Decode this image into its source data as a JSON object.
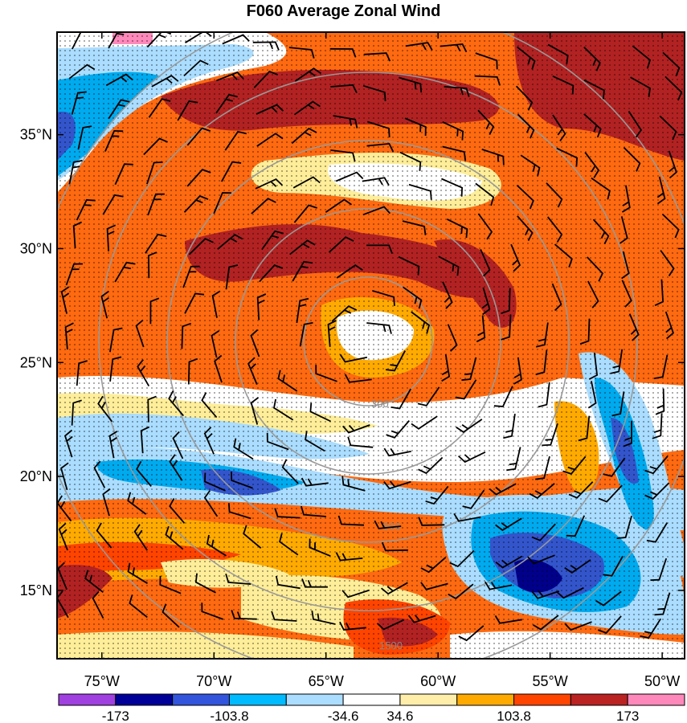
{
  "title": "F060 Average Zonal Wind",
  "map": {
    "lon_range": [
      -77,
      -49
    ],
    "lat_range": [
      12,
      39.5
    ],
    "lon_ticks": [
      {
        "value": -75,
        "label": "75°W"
      },
      {
        "value": -70,
        "label": "70°W"
      },
      {
        "value": -65,
        "label": "65°W"
      },
      {
        "value": -60,
        "label": "60°W"
      },
      {
        "value": -55,
        "label": "55°W"
      },
      {
        "value": -50,
        "label": "50°W"
      }
    ],
    "lat_ticks": [
      {
        "value": 35,
        "label": "35°N"
      },
      {
        "value": 30,
        "label": "30°N"
      },
      {
        "value": 25,
        "label": "25°N"
      },
      {
        "value": 20,
        "label": "20°N"
      },
      {
        "value": 15,
        "label": "15°N"
      }
    ],
    "range_rings": [
      {
        "label": "300"
      },
      {
        "label": "900"
      },
      {
        "label": "1500"
      }
    ],
    "colors": {
      "shading_levels": [
        "#8a2be2",
        "#00008b",
        "#3355cc",
        "#00aaee",
        "#aaddff",
        "#ffffff",
        "#ffee99",
        "#ffaa00",
        "#ff4400",
        "#b22222",
        "#ff88bb"
      ],
      "contour": "#222222",
      "ring": "#999999",
      "barb": "#000000"
    }
  },
  "colorbar": {
    "labels": [
      "-173",
      "-103.8",
      "-34.6",
      "34.6",
      "103.8",
      "173"
    ],
    "colors": [
      "#a040e0",
      "#000099",
      "#3355dd",
      "#00bbff",
      "#aaddff",
      "#ffffff",
      "#ffeeaa",
      "#ffaa00",
      "#ff4400",
      "#bb2222",
      "#ff88bb"
    ]
  }
}
